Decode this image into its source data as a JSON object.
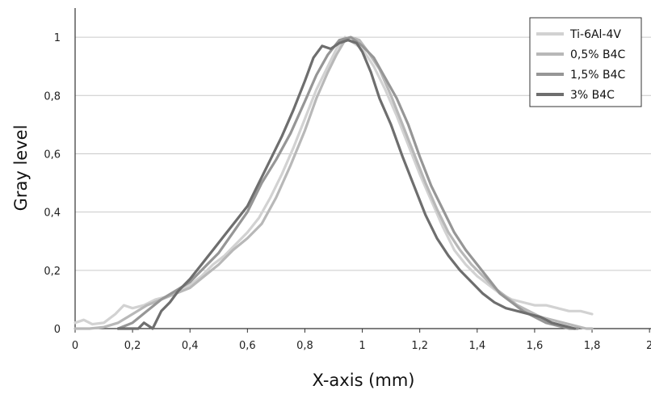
{
  "chart_data": {
    "type": "line",
    "title": "",
    "xlabel": "X-axis (mm)",
    "ylabel": "Gray level",
    "xlim": [
      0,
      2
    ],
    "ylim": [
      0,
      1.1
    ],
    "x_ticks": [
      "0",
      "0,2",
      "0,4",
      "0,6",
      "0,8",
      "1",
      "1,2",
      "1,4",
      "1,6",
      "1,8",
      "2"
    ],
    "y_ticks": [
      "0",
      "0,2",
      "0,4",
      "0,6",
      "0,8",
      "1"
    ],
    "grid": "horizontal",
    "legend_position": "top-right",
    "series": [
      {
        "name": "Ti-6Al-4V",
        "color": "#d2d2d2",
        "points": [
          [
            0.0,
            0.02
          ],
          [
            0.03,
            0.03
          ],
          [
            0.06,
            0.015
          ],
          [
            0.1,
            0.02
          ],
          [
            0.14,
            0.05
          ],
          [
            0.17,
            0.08
          ],
          [
            0.2,
            0.07
          ],
          [
            0.24,
            0.08
          ],
          [
            0.28,
            0.1
          ],
          [
            0.32,
            0.11
          ],
          [
            0.36,
            0.13
          ],
          [
            0.4,
            0.15
          ],
          [
            0.44,
            0.18
          ],
          [
            0.48,
            0.22
          ],
          [
            0.52,
            0.25
          ],
          [
            0.56,
            0.29
          ],
          [
            0.6,
            0.33
          ],
          [
            0.64,
            0.38
          ],
          [
            0.68,
            0.45
          ],
          [
            0.72,
            0.53
          ],
          [
            0.76,
            0.62
          ],
          [
            0.8,
            0.72
          ],
          [
            0.84,
            0.82
          ],
          [
            0.88,
            0.9
          ],
          [
            0.91,
            0.96
          ],
          [
            0.94,
            1.0
          ],
          [
            0.97,
            0.98
          ],
          [
            1.0,
            0.96
          ],
          [
            1.04,
            0.9
          ],
          [
            1.08,
            0.82
          ],
          [
            1.12,
            0.73
          ],
          [
            1.16,
            0.63
          ],
          [
            1.2,
            0.53
          ],
          [
            1.24,
            0.44
          ],
          [
            1.28,
            0.35
          ],
          [
            1.32,
            0.27
          ],
          [
            1.36,
            0.22
          ],
          [
            1.4,
            0.18
          ],
          [
            1.44,
            0.15
          ],
          [
            1.48,
            0.12
          ],
          [
            1.52,
            0.1
          ],
          [
            1.56,
            0.09
          ],
          [
            1.6,
            0.08
          ],
          [
            1.64,
            0.08
          ],
          [
            1.68,
            0.07
          ],
          [
            1.72,
            0.06
          ],
          [
            1.76,
            0.06
          ],
          [
            1.8,
            0.05
          ]
        ]
      },
      {
        "name": "0,5% B4C",
        "color": "#b8b8b8",
        "points": [
          [
            0.0,
            0.0
          ],
          [
            0.05,
            0.0
          ],
          [
            0.1,
            0.005
          ],
          [
            0.15,
            0.02
          ],
          [
            0.2,
            0.05
          ],
          [
            0.25,
            0.08
          ],
          [
            0.3,
            0.1
          ],
          [
            0.35,
            0.12
          ],
          [
            0.4,
            0.14
          ],
          [
            0.45,
            0.18
          ],
          [
            0.5,
            0.22
          ],
          [
            0.55,
            0.27
          ],
          [
            0.6,
            0.31
          ],
          [
            0.65,
            0.36
          ],
          [
            0.7,
            0.45
          ],
          [
            0.75,
            0.56
          ],
          [
            0.8,
            0.68
          ],
          [
            0.84,
            0.79
          ],
          [
            0.88,
            0.88
          ],
          [
            0.91,
            0.94
          ],
          [
            0.94,
            0.99
          ],
          [
            0.96,
            1.0
          ],
          [
            0.99,
            0.99
          ],
          [
            1.02,
            0.95
          ],
          [
            1.06,
            0.89
          ],
          [
            1.1,
            0.8
          ],
          [
            1.14,
            0.7
          ],
          [
            1.18,
            0.6
          ],
          [
            1.22,
            0.5
          ],
          [
            1.26,
            0.41
          ],
          [
            1.3,
            0.33
          ],
          [
            1.34,
            0.27
          ],
          [
            1.38,
            0.22
          ],
          [
            1.42,
            0.18
          ],
          [
            1.46,
            0.14
          ],
          [
            1.5,
            0.11
          ],
          [
            1.54,
            0.08
          ],
          [
            1.58,
            0.06
          ],
          [
            1.62,
            0.04
          ],
          [
            1.66,
            0.03
          ],
          [
            1.7,
            0.02
          ],
          [
            1.74,
            0.01
          ],
          [
            1.78,
            0.0
          ],
          [
            1.8,
            0.0
          ]
        ]
      },
      {
        "name": "1,5% B4C",
        "color": "#969696",
        "points": [
          [
            0.15,
            0.0
          ],
          [
            0.2,
            0.02
          ],
          [
            0.25,
            0.06
          ],
          [
            0.3,
            0.1
          ],
          [
            0.35,
            0.13
          ],
          [
            0.4,
            0.16
          ],
          [
            0.45,
            0.21
          ],
          [
            0.5,
            0.26
          ],
          [
            0.55,
            0.33
          ],
          [
            0.6,
            0.4
          ],
          [
            0.65,
            0.5
          ],
          [
            0.7,
            0.58
          ],
          [
            0.75,
            0.67
          ],
          [
            0.8,
            0.78
          ],
          [
            0.84,
            0.87
          ],
          [
            0.88,
            0.94
          ],
          [
            0.92,
            0.99
          ],
          [
            0.96,
            1.0
          ],
          [
            1.0,
            0.97
          ],
          [
            1.04,
            0.93
          ],
          [
            1.08,
            0.86
          ],
          [
            1.12,
            0.79
          ],
          [
            1.16,
            0.7
          ],
          [
            1.2,
            0.59
          ],
          [
            1.24,
            0.49
          ],
          [
            1.28,
            0.41
          ],
          [
            1.32,
            0.33
          ],
          [
            1.36,
            0.27
          ],
          [
            1.4,
            0.22
          ],
          [
            1.44,
            0.17
          ],
          [
            1.48,
            0.12
          ],
          [
            1.52,
            0.09
          ],
          [
            1.56,
            0.06
          ],
          [
            1.6,
            0.04
          ],
          [
            1.64,
            0.02
          ],
          [
            1.68,
            0.01
          ],
          [
            1.72,
            0.0
          ],
          [
            1.75,
            0.0
          ]
        ]
      },
      {
        "name": "3% B4C",
        "color": "#6e6e6e",
        "points": [
          [
            0.15,
            0.0
          ],
          [
            0.2,
            0.0
          ],
          [
            0.22,
            0.0
          ],
          [
            0.24,
            0.02
          ],
          [
            0.27,
            0.0
          ],
          [
            0.3,
            0.06
          ],
          [
            0.33,
            0.09
          ],
          [
            0.36,
            0.13
          ],
          [
            0.4,
            0.17
          ],
          [
            0.44,
            0.22
          ],
          [
            0.48,
            0.27
          ],
          [
            0.52,
            0.32
          ],
          [
            0.56,
            0.37
          ],
          [
            0.6,
            0.42
          ],
          [
            0.64,
            0.5
          ],
          [
            0.68,
            0.58
          ],
          [
            0.72,
            0.66
          ],
          [
            0.76,
            0.75
          ],
          [
            0.8,
            0.85
          ],
          [
            0.83,
            0.93
          ],
          [
            0.86,
            0.97
          ],
          [
            0.89,
            0.96
          ],
          [
            0.92,
            0.98
          ],
          [
            0.95,
            0.99
          ],
          [
            0.98,
            0.98
          ],
          [
            1.0,
            0.95
          ],
          [
            1.03,
            0.88
          ],
          [
            1.06,
            0.79
          ],
          [
            1.1,
            0.7
          ],
          [
            1.14,
            0.59
          ],
          [
            1.18,
            0.49
          ],
          [
            1.22,
            0.39
          ],
          [
            1.26,
            0.31
          ],
          [
            1.3,
            0.25
          ],
          [
            1.34,
            0.2
          ],
          [
            1.38,
            0.16
          ],
          [
            1.42,
            0.12
          ],
          [
            1.46,
            0.09
          ],
          [
            1.5,
            0.07
          ],
          [
            1.54,
            0.06
          ],
          [
            1.58,
            0.05
          ],
          [
            1.62,
            0.04
          ],
          [
            1.66,
            0.02
          ],
          [
            1.7,
            0.01
          ],
          [
            1.74,
            0.0
          ]
        ]
      }
    ]
  }
}
